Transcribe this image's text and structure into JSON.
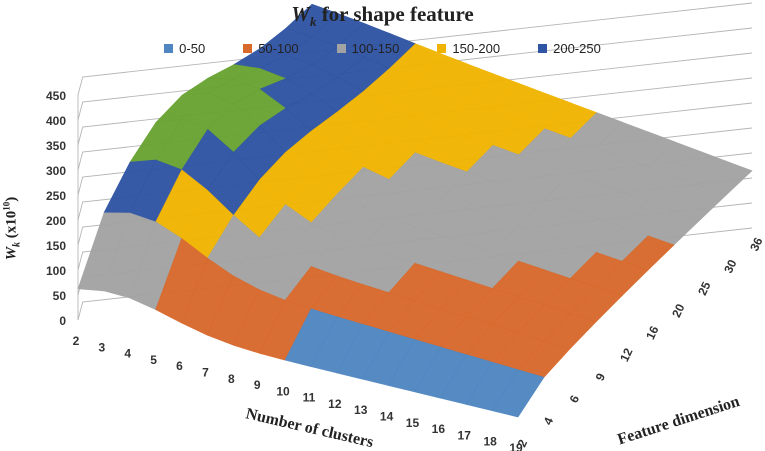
{
  "chart_data": {
    "type": "surface",
    "title": "W",
    "title_sub": "k",
    "title_rest": " for shape feature",
    "ylabel": "W",
    "ylabel_sub": "k",
    "ylabel_rest": " (x10",
    "ylabel_sup": "10",
    "ylabel_close": ")",
    "xlabel": "Number of clusters",
    "zlabel": "Feature dimension",
    "y_ticks": [
      "0",
      "50",
      "100",
      "150",
      "200",
      "250",
      "300",
      "350",
      "400",
      "450"
    ],
    "ylim": [
      0,
      450
    ],
    "clusters": [
      "2",
      "3",
      "4",
      "5",
      "6",
      "7",
      "8",
      "9",
      "10",
      "11",
      "12",
      "13",
      "14",
      "15",
      "16",
      "17",
      "18",
      "19"
    ],
    "dimensions": [
      "2",
      "4",
      "6",
      "9",
      "12",
      "16",
      "20",
      "25",
      "30",
      "36"
    ],
    "legend": [
      {
        "label": "0-50",
        "color": "#4f86c1"
      },
      {
        "label": "50-100",
        "color": "#d7692b"
      },
      {
        "label": "100-150",
        "color": "#a3a3a3"
      },
      {
        "label": "150-200",
        "color": "#f0b400"
      },
      {
        "label": "200-250",
        "color": "#2f54a3"
      }
    ],
    "extra_band_colors": [
      "#69a333",
      "#a9c8ea",
      "#f3a080"
    ],
    "grid": true,
    "legend_position": "top"
  }
}
